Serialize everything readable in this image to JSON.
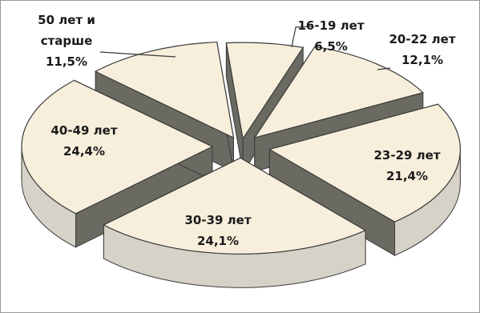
{
  "chart_data": {
    "type": "pie",
    "title": "",
    "style": "3d-exploded",
    "colors": {
      "top": "#f7efdc",
      "side_light": "#d6d2c8",
      "side_dark": "#6a6a62",
      "edge": "#3a3a3a",
      "text": "#1a1a1a"
    },
    "slices": [
      {
        "label_lines": [
          "16-19 лет",
          "6,5%"
        ],
        "value": 6.5
      },
      {
        "label_lines": [
          "20-22 лет",
          "12,1%"
        ],
        "value": 12.1
      },
      {
        "label_lines": [
          "23-29 лет",
          "21,4%"
        ],
        "value": 21.4
      },
      {
        "label_lines": [
          "30-39 лет",
          "24,1%"
        ],
        "value": 24.1
      },
      {
        "label_lines": [
          "40-49 лет",
          "24,4%"
        ],
        "value": 24.4
      },
      {
        "label_lines": [
          "50 лет и",
          "старше",
          "11,5%"
        ],
        "value": 11.5
      }
    ]
  }
}
